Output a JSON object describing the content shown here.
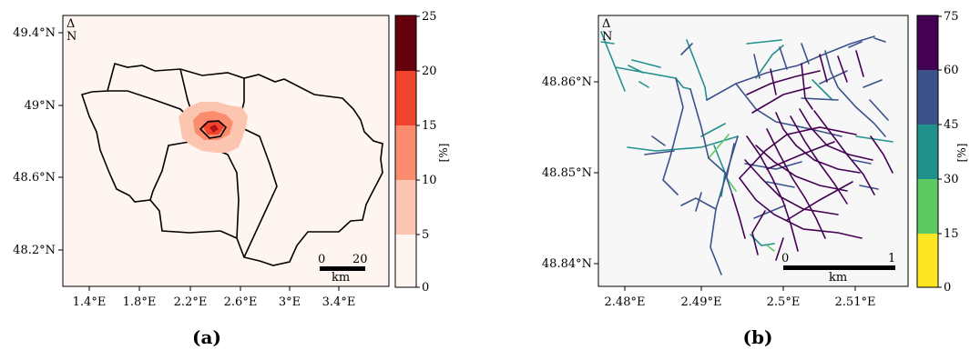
{
  "panels": [
    {
      "id": "a",
      "caption": "(a)",
      "xticks": [
        "1.4°E",
        "1.8°E",
        "2.2°E",
        "2.6°E",
        "3°E",
        "3.4°E"
      ],
      "yticks": [
        "49.4°N",
        "49°N",
        "48.6°N",
        "48.2°N"
      ],
      "north_arrow": {
        "symbol": "Δ",
        "label": "N"
      },
      "scalebar": {
        "start": "0",
        "end": "20",
        "unit": "km"
      },
      "colorbar": {
        "label": "[%]",
        "ticks": [
          "0",
          "5",
          "10",
          "15",
          "20",
          "25"
        ],
        "colors": [
          "#fff5f0",
          "#fcc5b0",
          "#fb8c6e",
          "#f0442f",
          "#b11218",
          "#67000d"
        ]
      },
      "background_color": "#fff5f0"
    },
    {
      "id": "b",
      "caption": "(b)",
      "xticks": [
        "2.48°E",
        "2.49°E",
        "2.5°E",
        "2.51°E"
      ],
      "yticks": [
        "48.86°N",
        "48.85°N",
        "48.84°N"
      ],
      "north_arrow": {
        "symbol": "Δ",
        "label": "N"
      },
      "scalebar": {
        "start": "0",
        "end": "1",
        "unit": "km"
      },
      "colorbar": {
        "label": "[%]",
        "ticks": [
          "0",
          "15",
          "30",
          "45",
          "60",
          "75"
        ],
        "colors": [
          "#fde725",
          "#5ec962",
          "#21918c",
          "#3b528b",
          "#440154"
        ]
      },
      "background_color": "#f7f7f7"
    }
  ]
}
